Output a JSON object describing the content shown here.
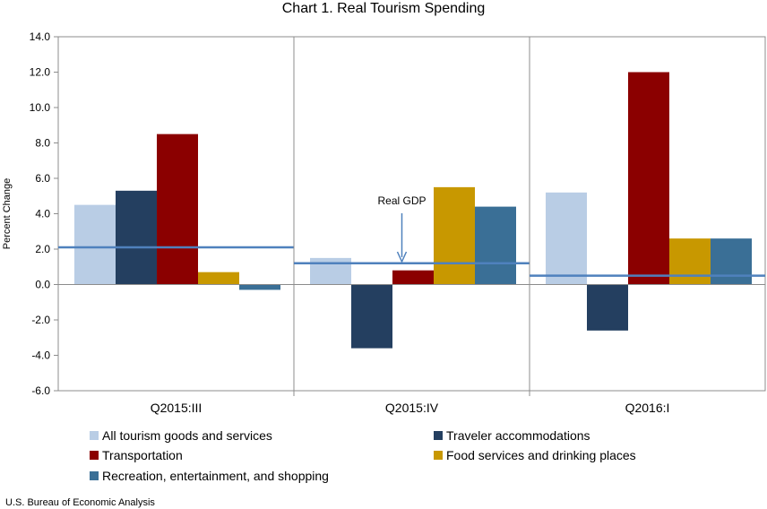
{
  "chart_data": {
    "type": "bar",
    "title": "Chart 1. Real Tourism Spending",
    "ylabel": "Percent Change",
    "xlabel": "",
    "ylim": [
      -6.0,
      14.0
    ],
    "ytick_step": 2.0,
    "categories": [
      "Q2015:III",
      "Q2015:IV",
      "Q2016:I"
    ],
    "series": [
      {
        "name": "All tourism goods and services",
        "color": "#b9cde5",
        "values": [
          4.5,
          1.5,
          5.2
        ]
      },
      {
        "name": "Traveler accommodations",
        "color": "#243f60",
        "values": [
          5.3,
          -3.6,
          -2.6
        ]
      },
      {
        "name": "Transportation",
        "color": "#8b0000",
        "values": [
          8.5,
          0.8,
          12.0
        ]
      },
      {
        "name": "Food services and drinking places",
        "color": "#c89800",
        "values": [
          0.7,
          5.5,
          2.6
        ]
      },
      {
        "name": "Recreation, entertainment, and shopping",
        "color": "#3a6f96",
        "values": [
          -0.3,
          4.4,
          2.6
        ]
      }
    ],
    "reference_line": {
      "name": "Real GDP",
      "color": "#4f81bd",
      "values": [
        2.1,
        1.2,
        0.5
      ]
    },
    "annotation": "Real GDP"
  },
  "source": "U.S. Bureau of Economic Analysis"
}
